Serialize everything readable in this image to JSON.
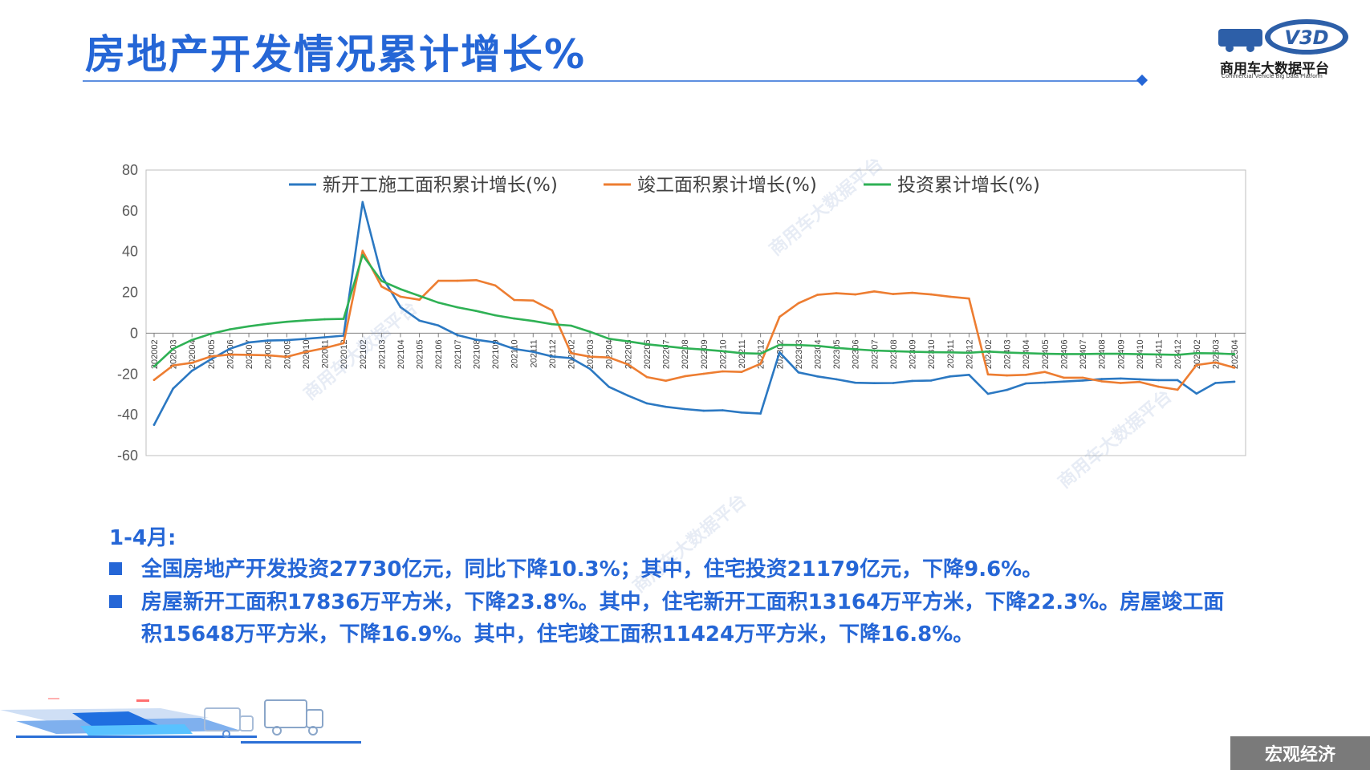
{
  "page": {
    "title": "房地产开发情况累计增长%",
    "logo": {
      "name": "商用车大数据平台",
      "subtitle": "Commercial Vehicle Big Data Platform",
      "mark": "V3D"
    },
    "watermark": "商用车大数据平台",
    "footer_tag": "宏观经济"
  },
  "notes": {
    "period": "1-4月:",
    "bullets": [
      {
        "text": "全国房地产开发投资27730亿元，同比下降10.3%；其中，住宅投资21179亿元，下降9.6%。"
      },
      {
        "text": "房屋新开工面积17836万平方米，下降23.8%。其中，住宅新开工面积13164万平方米，下降22.3%。房屋竣工面积15648万平方米，下降16.9%。其中，住宅竣工面积11424万平方米，下降16.8%。"
      }
    ]
  },
  "chart_data": {
    "type": "line",
    "ylim": [
      -60,
      80
    ],
    "yticks": [
      80,
      60,
      40,
      20,
      0,
      -20,
      -40,
      -60
    ],
    "grid": false,
    "legend_position": "top",
    "x": [
      "202002",
      "202003",
      "202004",
      "202005",
      "202006",
      "202007",
      "202008",
      "202009",
      "202010",
      "202011",
      "202012",
      "202102",
      "202103",
      "202104",
      "202105",
      "202106",
      "202107",
      "202108",
      "202109",
      "202110",
      "202111",
      "202112",
      "202202",
      "202203",
      "202204",
      "202205",
      "202206",
      "202207",
      "202208",
      "202209",
      "202210",
      "202211",
      "202212",
      "202302",
      "202303",
      "202304",
      "202305",
      "202306",
      "202307",
      "202308",
      "202309",
      "202310",
      "202311",
      "202312",
      "202402",
      "202403",
      "202404",
      "202405",
      "202406",
      "202407",
      "202408",
      "202409",
      "202410",
      "202411",
      "202412",
      "202502",
      "202503",
      "202504"
    ],
    "series": [
      {
        "name": "新开工施工面积累计增长(%)",
        "color": "#2b78c2",
        "values": [
          -44.9,
          -27.2,
          -18.4,
          -12.8,
          -7.6,
          -4.5,
          -3.6,
          -3.4,
          -2.8,
          -2.0,
          -1.2,
          64.3,
          28.2,
          12.8,
          6.2,
          3.8,
          -0.9,
          -3.2,
          -4.5,
          -7.7,
          -9.1,
          -11.4,
          -12.2,
          -17.5,
          -26.3,
          -30.6,
          -34.4,
          -36.1,
          -37.2,
          -38.0,
          -37.8,
          -38.9,
          -39.4,
          -9.4,
          -19.2,
          -21.2,
          -22.6,
          -24.3,
          -24.5,
          -24.4,
          -23.4,
          -23.2,
          -21.2,
          -20.4,
          -29.7,
          -27.8,
          -24.6,
          -24.2,
          -23.7,
          -23.2,
          -22.5,
          -22.2,
          -22.6,
          -23.0,
          -23.0,
          -29.6,
          -24.4,
          -23.8
        ]
      },
      {
        "name": "竣工面积累计增长(%)",
        "color": "#ed7d31",
        "values": [
          -22.9,
          -15.8,
          -14.5,
          -11.4,
          -10.5,
          -10.6,
          -10.8,
          -11.6,
          -9.2,
          -7.3,
          -4.9,
          40.4,
          22.9,
          17.9,
          16.4,
          25.7,
          25.7,
          26.0,
          23.4,
          16.3,
          16.0,
          11.2,
          -9.8,
          -11.5,
          -11.9,
          -15.3,
          -21.5,
          -23.3,
          -21.1,
          -19.9,
          -18.7,
          -19.0,
          -15.0,
          8.0,
          14.7,
          18.8,
          19.6,
          19.0,
          20.5,
          19.2,
          19.8,
          19.0,
          17.9,
          17.0,
          -20.2,
          -20.7,
          -20.4,
          -19.0,
          -21.8,
          -21.8,
          -23.6,
          -24.4,
          -23.9,
          -26.2,
          -27.7,
          -15.6,
          -14.3,
          -16.9
        ]
      },
      {
        "name": "投资累计增长(%)",
        "color": "#2fb155",
        "values": [
          -16.3,
          -7.7,
          -3.3,
          -0.3,
          1.9,
          3.4,
          4.6,
          5.6,
          6.3,
          6.8,
          7.0,
          38.3,
          25.6,
          21.6,
          18.3,
          15.0,
          12.7,
          10.9,
          8.8,
          7.2,
          6.0,
          4.4,
          3.7,
          0.7,
          -2.7,
          -4.0,
          -5.4,
          -6.4,
          -7.4,
          -8.0,
          -8.8,
          -9.8,
          -10.0,
          -5.7,
          -5.8,
          -6.2,
          -7.2,
          -7.9,
          -8.5,
          -8.8,
          -9.1,
          -9.3,
          -9.4,
          -9.6,
          -9.0,
          -9.5,
          -9.8,
          -10.1,
          -10.2,
          -10.2,
          -10.1,
          -10.1,
          -10.3,
          -10.4,
          -10.6,
          -9.8,
          -9.9,
          -10.3
        ]
      }
    ]
  }
}
